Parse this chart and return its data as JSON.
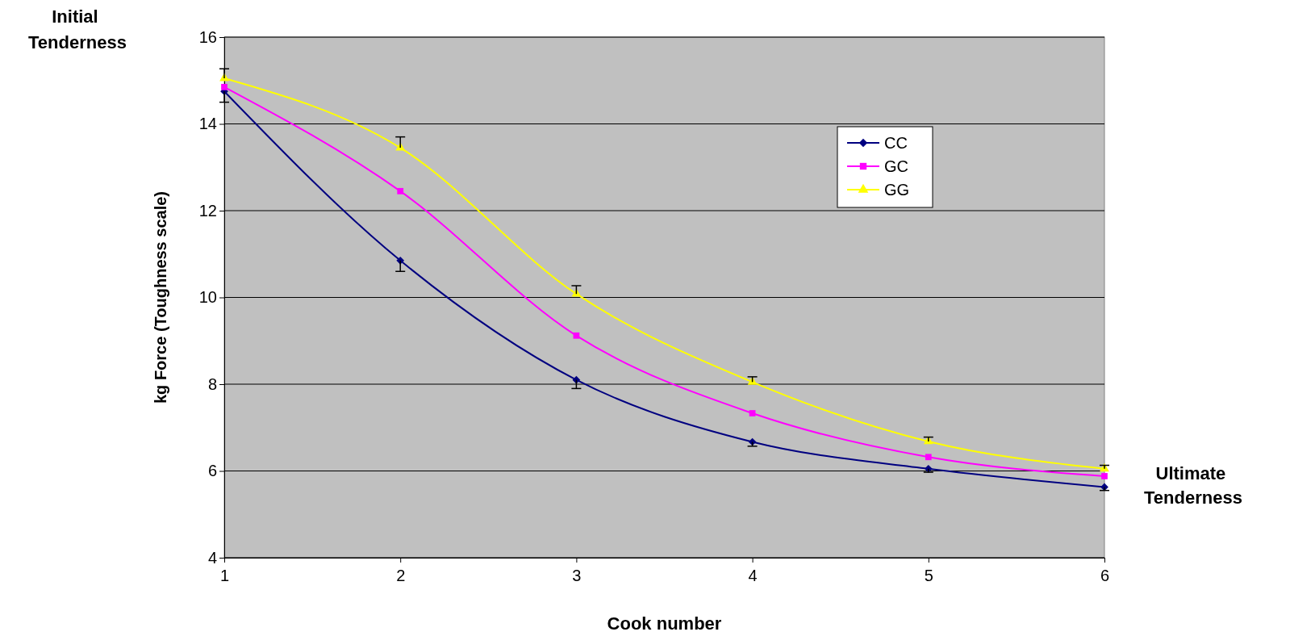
{
  "chart_data": {
    "type": "line",
    "xlabel": "Cook number",
    "ylabel": "kg Force (Toughness scale)",
    "annotations": [
      "Initial Tenderness",
      "Ultimate Tenderness"
    ],
    "x": [
      1,
      2,
      3,
      4,
      5,
      6
    ],
    "xlim": [
      1,
      6
    ],
    "xticks": [
      1,
      2,
      3,
      4,
      5,
      6
    ],
    "ylim": [
      4,
      16
    ],
    "yticks": [
      4,
      6,
      8,
      10,
      12,
      14,
      16
    ],
    "grid": "y",
    "legend": "top right",
    "line_style": "solid",
    "series": [
      {
        "name": "CC",
        "color": "#000080",
        "marker": "diamond",
        "values": [
          14.75,
          10.85,
          8.1,
          6.67,
          6.05,
          5.63
        ],
        "errors": [
          [
            14.5,
            14.75
          ],
          [
            10.6,
            10.85
          ],
          [
            7.9,
            8.1
          ],
          [
            6.57,
            6.67
          ],
          [
            5.97,
            6.05
          ],
          [
            5.55,
            5.63
          ]
        ]
      },
      {
        "name": "GC",
        "color": "#ff00ff",
        "marker": "square",
        "values": [
          14.85,
          12.45,
          9.12,
          7.33,
          6.32,
          5.88
        ]
      },
      {
        "name": "GG",
        "color": "#ffff00",
        "marker": "triangle",
        "values": [
          15.05,
          13.45,
          10.08,
          8.05,
          6.68,
          6.05
        ],
        "errors": [
          [
            15.05,
            15.27
          ],
          [
            13.45,
            13.7
          ],
          [
            10.08,
            10.27
          ],
          [
            8.05,
            8.17
          ],
          [
            6.68,
            6.78
          ],
          [
            6.05,
            6.13
          ]
        ]
      }
    ]
  }
}
